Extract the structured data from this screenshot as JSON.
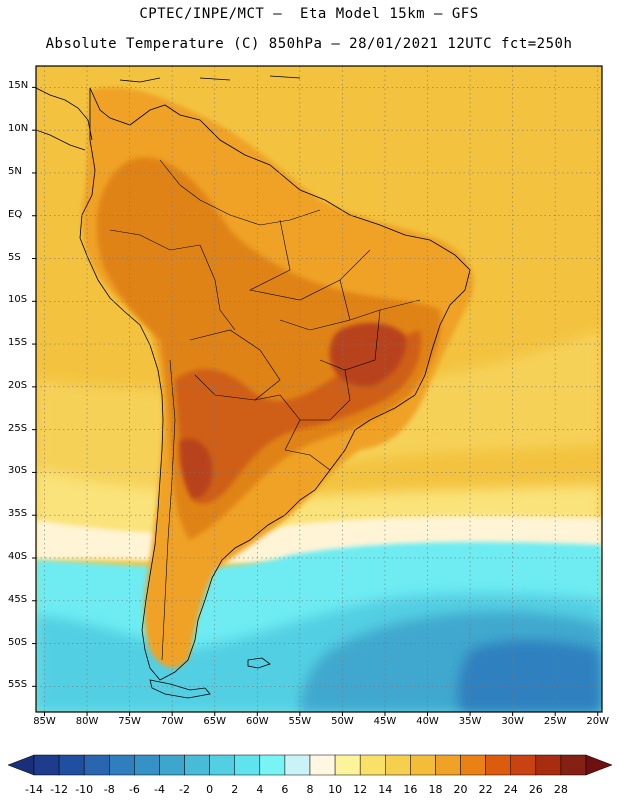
{
  "header": {
    "line1": "CPTEC/INPE/MCT –  Eta Model 15km – GFS",
    "line2": "Absolute Temperature (C) 850hPa – 28/01/2021 12UTC fct=250h"
  },
  "axes": {
    "lat_labels": [
      "15N",
      "10N",
      "5N",
      "EQ",
      "5S",
      "10S",
      "15S",
      "20S",
      "25S",
      "30S",
      "35S",
      "40S",
      "45S",
      "50S",
      "55S"
    ],
    "lat_values": [
      15,
      10,
      5,
      0,
      -5,
      -10,
      -15,
      -20,
      -25,
      -30,
      -35,
      -40,
      -45,
      -50,
      -55
    ],
    "lon_labels": [
      "85W",
      "80W",
      "75W",
      "70W",
      "65W",
      "60W",
      "55W",
      "50W",
      "45W",
      "40W",
      "35W",
      "30W",
      "25W",
      "20W"
    ],
    "lon_values": [
      -85,
      -80,
      -75,
      -70,
      -65,
      -60,
      -55,
      -50,
      -45,
      -40,
      -35,
      -30,
      -25,
      -20
    ],
    "lat_range": [
      -58,
      17.5
    ],
    "lon_range": [
      -86,
      -19.5
    ]
  },
  "legend": {
    "labels": [
      "-14",
      "-12",
      "-10",
      "-8",
      "-6",
      "-4",
      "-2",
      "0",
      "2",
      "4",
      "6",
      "8",
      "10",
      "12",
      "14",
      "16",
      "18",
      "20",
      "22",
      "24",
      "26",
      "28"
    ],
    "colors": [
      "#1e3c8c",
      "#1f4f9e",
      "#2a66b0",
      "#2f7ebe",
      "#3692c6",
      "#3ea6cd",
      "#47bbd8",
      "#52cfe3",
      "#5fe3ee",
      "#78f4f4",
      "#c9f3f6",
      "#fff7e2",
      "#fbf49a",
      "#f9e068",
      "#f6cf4f",
      "#f3bd39",
      "#efa225",
      "#e98114",
      "#db5c0c",
      "#c84212",
      "#a82d10",
      "#852014"
    ],
    "low_arrow_color": "#1a2f7a",
    "high_arrow_color": "#6e1010"
  },
  "field_colors": {
    "ocean_warm": "#f3c33f",
    "ocean_mid": "#f6d158",
    "ocean_cool": "#fae37a",
    "pale": "#fff4d6",
    "cyan": "#6eecf2",
    "cyan_dark": "#52cfe3",
    "teal": "#3fa8ce",
    "blue": "#2f80bf",
    "land_warm": "#efa225",
    "land_hot": "#e08318",
    "land_hotter": "#cf5f14",
    "land_hottest": "#b8421a"
  }
}
